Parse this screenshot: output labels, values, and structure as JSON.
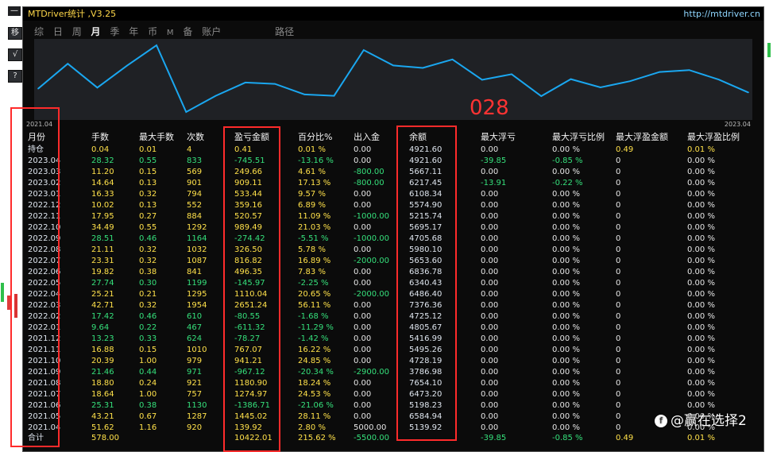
{
  "window": {
    "title": "MTDriver统计 ,V3.25",
    "url": "http://mtdriver.cn",
    "top_tool": "—"
  },
  "toolbar": {
    "icons": [
      "move-icon",
      "chart-icon",
      "help-icon"
    ],
    "labels": [
      "移",
      "√",
      "?"
    ]
  },
  "menu": {
    "items": [
      "综",
      "日",
      "周",
      "月",
      "季",
      "年",
      "币",
      "M",
      "备",
      "账户"
    ],
    "path_label": "路径",
    "active_index": 3
  },
  "chart": {
    "overlay_number": "028",
    "x_start": "2021.04",
    "x_end": "2023.04",
    "line_color": "#1aa7f0"
  },
  "chart_data": {
    "type": "line",
    "x": [
      "2021.04",
      "2021.05",
      "2021.06",
      "2021.07",
      "2021.08",
      "2021.09",
      "2021.10",
      "2021.11",
      "2021.12",
      "2022.01",
      "2022.02",
      "2022.03",
      "2022.04",
      "2022.05",
      "2022.06",
      "2022.07",
      "2022.08",
      "2022.09",
      "2022.10",
      "2022.11",
      "2022.12",
      "2023.01",
      "2023.02",
      "2023.03",
      "2023.04"
    ],
    "values": [
      5139.92,
      6584.94,
      5198.23,
      6473.2,
      7654.1,
      3786.98,
      4728.19,
      5495.26,
      5416.99,
      4805.67,
      4725.12,
      7376.36,
      6486.4,
      6340.43,
      6836.78,
      5653.6,
      5980.1,
      4705.68,
      5695.17,
      5215.74,
      5574.9,
      6108.34,
      6217.45,
      5667.11,
      4921.6
    ]
  },
  "headers": [
    "月份",
    "手数",
    "最大手数",
    "次数",
    "盈亏金额",
    "百分比%",
    "出入金",
    "余额",
    "最大浮亏",
    "最大浮亏比例",
    "最大浮盈金额",
    "最大浮盈比例"
  ],
  "rows": [
    [
      "持仓",
      "0.04",
      "0.01",
      "4",
      "0.41",
      "0.01 %",
      "0.00",
      "4921.60",
      "0.00",
      "0.00 %",
      "0.49",
      "0.01 %"
    ],
    [
      "2023.04",
      "28.32",
      "0.55",
      "833",
      "-745.51",
      "-13.16 %",
      "0.00",
      "4921.60",
      "-39.85",
      "-0.85 %",
      "0",
      "0.00 %"
    ],
    [
      "2023.03",
      "11.20",
      "0.15",
      "569",
      "249.66",
      "4.61 %",
      "-800.00",
      "5667.11",
      "0.00",
      "0.00 %",
      "0",
      "0.00 %"
    ],
    [
      "2023.02",
      "14.64",
      "0.13",
      "901",
      "909.11",
      "17.13 %",
      "-800.00",
      "6217.45",
      "-13.91",
      "-0.22 %",
      "0",
      "0.00 %"
    ],
    [
      "2023.01",
      "16.33",
      "0.32",
      "794",
      "533.44",
      "9.57 %",
      "0.00",
      "6108.34",
      "0.00",
      "0.00 %",
      "0",
      "0.00 %"
    ],
    [
      "2022.12",
      "10.02",
      "0.13",
      "552",
      "359.16",
      "6.89 %",
      "0.00",
      "5574.90",
      "0.00",
      "0.00 %",
      "0",
      "0.00 %"
    ],
    [
      "2022.11",
      "17.95",
      "0.27",
      "884",
      "520.57",
      "11.09 %",
      "-1000.00",
      "5215.74",
      "0.00",
      "0.00 %",
      "0",
      "0.00 %"
    ],
    [
      "2022.10",
      "34.49",
      "0.55",
      "1292",
      "989.49",
      "21.03 %",
      "0.00",
      "5695.17",
      "0.00",
      "0.00 %",
      "0",
      "0.00 %"
    ],
    [
      "2022.09",
      "28.51",
      "0.46",
      "1164",
      "-274.42",
      "-5.51 %",
      "-1000.00",
      "4705.68",
      "0.00",
      "0.00 %",
      "0",
      "0.00 %"
    ],
    [
      "2022.08",
      "21.11",
      "0.32",
      "1032",
      "326.50",
      "5.78 %",
      "0.00",
      "5980.10",
      "0.00",
      "0.00 %",
      "0",
      "0.00 %"
    ],
    [
      "2022.07",
      "23.31",
      "0.32",
      "1087",
      "816.82",
      "16.89 %",
      "-2000.00",
      "5653.60",
      "0.00",
      "0.00 %",
      "0",
      "0.00 %"
    ],
    [
      "2022.06",
      "19.82",
      "0.38",
      "841",
      "496.35",
      "7.83 %",
      "0.00",
      "6836.78",
      "0.00",
      "0.00 %",
      "0",
      "0.00 %"
    ],
    [
      "2022.05",
      "27.74",
      "0.30",
      "1199",
      "-145.97",
      "-2.25 %",
      "0.00",
      "6340.43",
      "0.00",
      "0.00 %",
      "0",
      "0.00 %"
    ],
    [
      "2022.04",
      "25.21",
      "0.21",
      "1295",
      "1110.04",
      "20.65 %",
      "-2000.00",
      "6486.40",
      "0.00",
      "0.00 %",
      "0",
      "0.00 %"
    ],
    [
      "2022.03",
      "42.71",
      "0.32",
      "1954",
      "2651.24",
      "56.11 %",
      "0.00",
      "7376.36",
      "0.00",
      "0.00 %",
      "0",
      "0.00 %"
    ],
    [
      "2022.02",
      "17.42",
      "0.46",
      "610",
      "-80.55",
      "-1.68 %",
      "0.00",
      "4725.12",
      "0.00",
      "0.00 %",
      "0",
      "0.00 %"
    ],
    [
      "2022.01",
      "9.64",
      "0.22",
      "467",
      "-611.32",
      "-11.29 %",
      "0.00",
      "4805.67",
      "0.00",
      "0.00 %",
      "0",
      "0.00 %"
    ],
    [
      "2021.12",
      "13.23",
      "0.33",
      "624",
      "-78.27",
      "-1.42 %",
      "0.00",
      "5416.99",
      "0.00",
      "0.00 %",
      "0",
      "0.00 %"
    ],
    [
      "2021.11",
      "16.88",
      "0.15",
      "1010",
      "767.07",
      "16.22 %",
      "0.00",
      "5495.26",
      "0.00",
      "0.00 %",
      "0",
      "0.00 %"
    ],
    [
      "2021.10",
      "20.39",
      "1.00",
      "979",
      "941.21",
      "24.85 %",
      "0.00",
      "4728.19",
      "0.00",
      "0.00 %",
      "0",
      "0.00 %"
    ],
    [
      "2021.09",
      "21.46",
      "0.44",
      "971",
      "-967.12",
      "-20.34 %",
      "-2900.00",
      "3786.98",
      "0.00",
      "0.00 %",
      "0",
      "0.00 %"
    ],
    [
      "2021.08",
      "18.80",
      "0.24",
      "921",
      "1180.90",
      "18.24 %",
      "0.00",
      "7654.10",
      "0.00",
      "0.00 %",
      "0",
      "0.00 %"
    ],
    [
      "2021.07",
      "18.64",
      "1.00",
      "757",
      "1274.97",
      "24.53 %",
      "0.00",
      "6473.20",
      "0.00",
      "0.00 %",
      "0",
      "0.00 %"
    ],
    [
      "2021.06",
      "25.31",
      "0.38",
      "1130",
      "-1386.71",
      "-21.06 %",
      "0.00",
      "5198.23",
      "0.00",
      "0.00 %",
      "0",
      "0.00 %"
    ],
    [
      "2021.05",
      "43.21",
      "0.67",
      "1287",
      "1445.02",
      "28.11 %",
      "0.00",
      "6584.94",
      "0.00",
      "0.00 %",
      "0",
      "0.00 %"
    ],
    [
      "2021.04",
      "51.62",
      "1.16",
      "920",
      "139.92",
      "2.80 %",
      "5000.00",
      "5139.92",
      "0.00",
      "0.00 %",
      "0",
      "0.00 %"
    ]
  ],
  "total": [
    "合计",
    "578.00",
    "",
    "",
    "10422.01",
    "215.62 %",
    "-5500.00",
    "",
    "-39.85",
    "-0.85 %",
    "0.49",
    "0.01 %"
  ],
  "watermark": {
    "icon": "f",
    "text": "@赢在选择2"
  }
}
